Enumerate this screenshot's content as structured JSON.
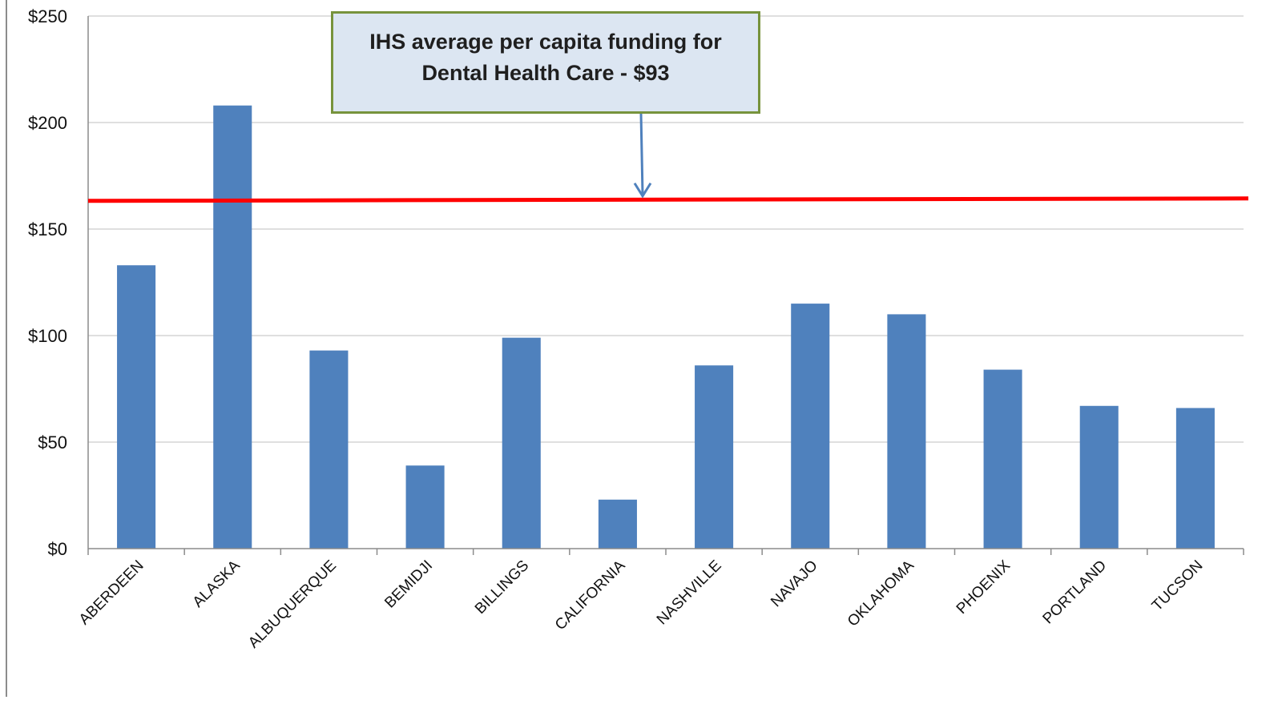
{
  "chart_data": {
    "type": "bar",
    "categories": [
      "ABERDEEN",
      "ALASKA",
      "ALBUQUERQUE",
      "BEMIDJI",
      "BILLINGS",
      "CALIFORNIA",
      "NASHVILLE",
      "NAVAJO",
      "OKLAHOMA",
      "PHOENIX",
      "PORTLAND",
      "TUCSON"
    ],
    "values": [
      133,
      208,
      93,
      39,
      99,
      23,
      86,
      115,
      110,
      84,
      67,
      66
    ],
    "ylim": [
      0,
      250
    ],
    "yticks": [
      0,
      50,
      100,
      150,
      200,
      250
    ],
    "ytick_labels": [
      "$0",
      "$50",
      "$100",
      "$150",
      "$200",
      "$250"
    ],
    "grid": true,
    "reference_line": {
      "value": 164,
      "color": "#ff0000"
    },
    "annotation": {
      "line1": "IHS average per capita funding for",
      "line2": "Dental Health Care - $93",
      "border_color": "#77933c",
      "fill_color": "#dce6f2",
      "arrow_color": "#4f81bd"
    },
    "bar_color": "#4f81bd",
    "gridline_color": "#bfbfbf"
  }
}
